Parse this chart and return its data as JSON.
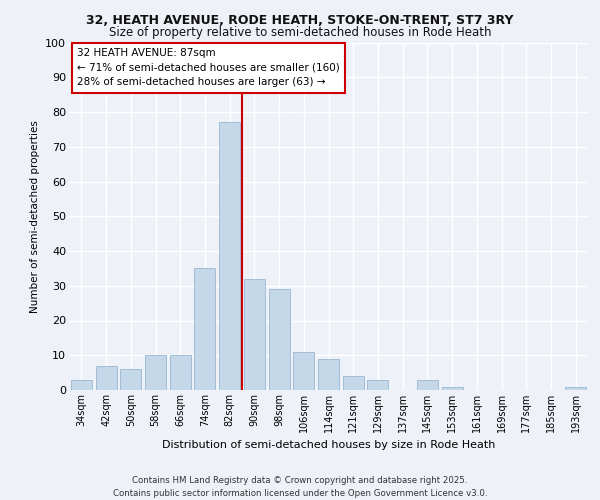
{
  "title1": "32, HEATH AVENUE, RODE HEATH, STOKE-ON-TRENT, ST7 3RY",
  "title2": "Size of property relative to semi-detached houses in Rode Heath",
  "xlabel": "Distribution of semi-detached houses by size in Rode Heath",
  "ylabel": "Number of semi-detached properties",
  "categories": [
    "34sqm",
    "42sqm",
    "50sqm",
    "58sqm",
    "66sqm",
    "74sqm",
    "82sqm",
    "90sqm",
    "98sqm",
    "106sqm",
    "114sqm",
    "121sqm",
    "129sqm",
    "137sqm",
    "145sqm",
    "153sqm",
    "161sqm",
    "169sqm",
    "177sqm",
    "185sqm",
    "193sqm"
  ],
  "values": [
    3,
    7,
    6,
    10,
    10,
    35,
    77,
    32,
    29,
    11,
    9,
    4,
    3,
    0,
    3,
    1,
    0,
    0,
    0,
    0,
    1
  ],
  "bar_color": "#c5d8ea",
  "bar_edge_color": "#9ab8d0",
  "annotation_title": "32 HEATH AVENUE: 87sqm",
  "annotation_line1": "← 71% of semi-detached houses are smaller (160)",
  "annotation_line2": "28% of semi-detached houses are larger (63) →",
  "vline_x": 6.5,
  "ylim": [
    0,
    100
  ],
  "yticks": [
    0,
    10,
    20,
    30,
    40,
    50,
    60,
    70,
    80,
    90,
    100
  ],
  "footer1": "Contains HM Land Registry data © Crown copyright and database right 2025.",
  "footer2": "Contains public sector information licensed under the Open Government Licence v3.0.",
  "bg_color": "#eef2f8",
  "plot_bg_color": "#eef2f8"
}
